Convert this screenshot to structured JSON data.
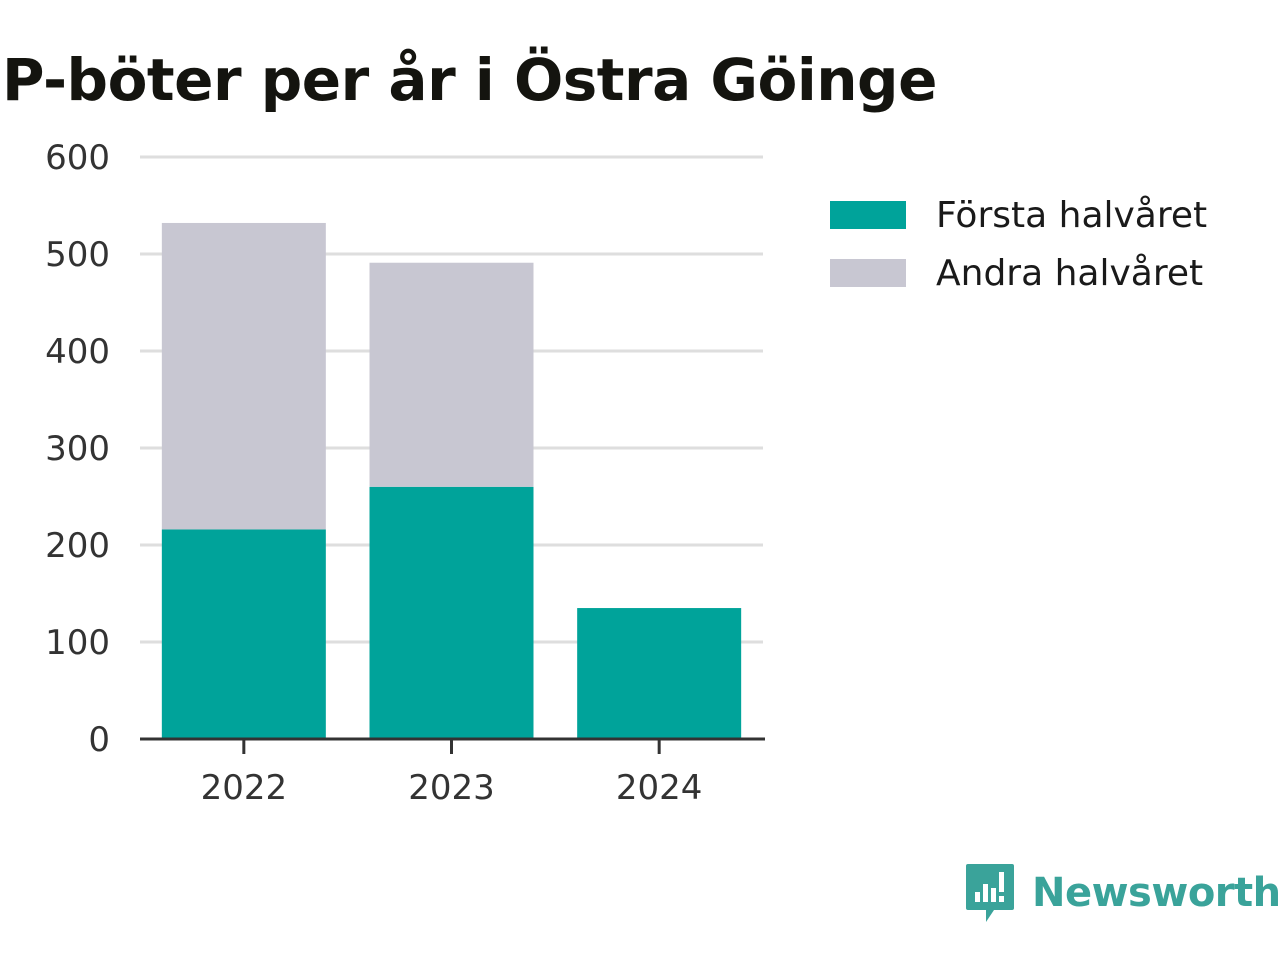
{
  "chart_data": {
    "type": "bar",
    "stacked": true,
    "title": "P-böter per år i Östra Göinge",
    "categories": [
      "2022",
      "2023",
      "2024"
    ],
    "series": [
      {
        "name": "Första halvåret",
        "color": "#00a39a",
        "values": [
          216,
          260,
          135
        ]
      },
      {
        "name": "Andra halvåret",
        "color": "#c8c7d2",
        "values": [
          316,
          231,
          0
        ]
      }
    ],
    "ylim": [
      0,
      600
    ],
    "yticks": [
      0,
      100,
      200,
      300,
      400,
      500,
      600
    ],
    "grid": true,
    "legend": "top-right"
  },
  "brand": {
    "label": "Newsworthy",
    "icon": "newsworthy-logo-icon",
    "color": "#3aa39a"
  }
}
